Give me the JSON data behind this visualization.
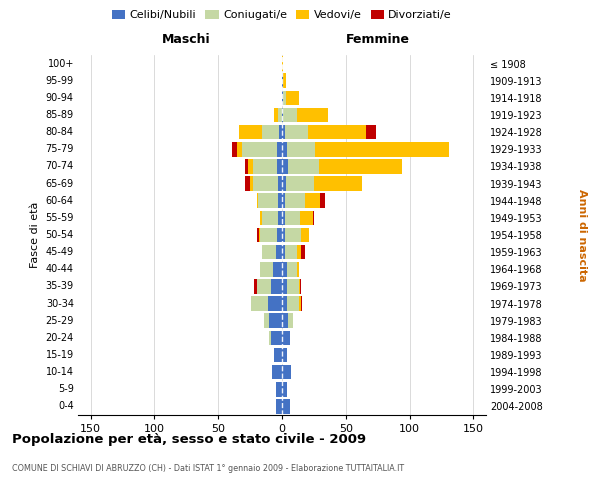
{
  "age_groups": [
    "0-4",
    "5-9",
    "10-14",
    "15-19",
    "20-24",
    "25-29",
    "30-34",
    "35-39",
    "40-44",
    "45-49",
    "50-54",
    "55-59",
    "60-64",
    "65-69",
    "70-74",
    "75-79",
    "80-84",
    "85-89",
    "90-94",
    "95-99",
    "100+"
  ],
  "birth_years": [
    "2004-2008",
    "1999-2003",
    "1994-1998",
    "1989-1993",
    "1984-1988",
    "1979-1983",
    "1974-1978",
    "1969-1973",
    "1964-1968",
    "1959-1963",
    "1954-1958",
    "1949-1953",
    "1944-1948",
    "1939-1943",
    "1934-1938",
    "1929-1933",
    "1924-1928",
    "1919-1923",
    "1914-1918",
    "1909-1913",
    "≤ 1908"
  ],
  "colors": {
    "celibe": "#4472C4",
    "coniugato": "#c5d8a4",
    "vedovo": "#ffc000",
    "divorziato": "#c00000"
  },
  "maschi": {
    "celibe": [
      5,
      5,
      8,
      6,
      9,
      10,
      11,
      9,
      7,
      5,
      4,
      3,
      3,
      3,
      4,
      4,
      2,
      0,
      0,
      0,
      0
    ],
    "coniugato": [
      0,
      0,
      0,
      0,
      1,
      4,
      13,
      11,
      10,
      11,
      13,
      13,
      16,
      20,
      19,
      27,
      14,
      3,
      0,
      0,
      0
    ],
    "vedovo": [
      0,
      0,
      0,
      0,
      0,
      0,
      0,
      0,
      0,
      0,
      1,
      1,
      1,
      2,
      4,
      4,
      18,
      3,
      0,
      0,
      0
    ],
    "divorziato": [
      0,
      0,
      0,
      0,
      0,
      0,
      0,
      2,
      0,
      0,
      2,
      0,
      0,
      4,
      2,
      4,
      0,
      0,
      0,
      0,
      0
    ]
  },
  "femmine": {
    "nubile": [
      6,
      4,
      7,
      4,
      6,
      5,
      4,
      4,
      4,
      2,
      2,
      2,
      2,
      3,
      5,
      4,
      2,
      1,
      1,
      1,
      0
    ],
    "coniugata": [
      0,
      0,
      0,
      0,
      0,
      4,
      9,
      9,
      8,
      10,
      13,
      12,
      16,
      22,
      24,
      22,
      18,
      11,
      2,
      0,
      0
    ],
    "vedova": [
      0,
      0,
      0,
      0,
      0,
      0,
      2,
      1,
      1,
      3,
      6,
      10,
      12,
      38,
      65,
      105,
      46,
      24,
      10,
      2,
      1
    ],
    "divorziata": [
      0,
      0,
      0,
      0,
      0,
      0,
      1,
      1,
      0,
      3,
      0,
      1,
      4,
      0,
      0,
      0,
      8,
      0,
      0,
      0,
      0
    ]
  },
  "title": "Popolazione per età, sesso e stato civile - 2009",
  "subtitle": "COMUNE DI SCHIAVI DI ABRUZZO (CH) - Dati ISTAT 1° gennaio 2009 - Elaborazione TUTTAITALIA.IT",
  "xlabel_maschi": "Maschi",
  "xlabel_femmine": "Femmine",
  "ylabel_left": "Fasce di età",
  "ylabel_right": "Anni di nascita",
  "xlim": 160,
  "background_color": "#ffffff",
  "grid_color": "#cccccc",
  "legend": [
    "Celibi/Nubili",
    "Coniugati/e",
    "Vedovi/e",
    "Divorziati/e"
  ]
}
